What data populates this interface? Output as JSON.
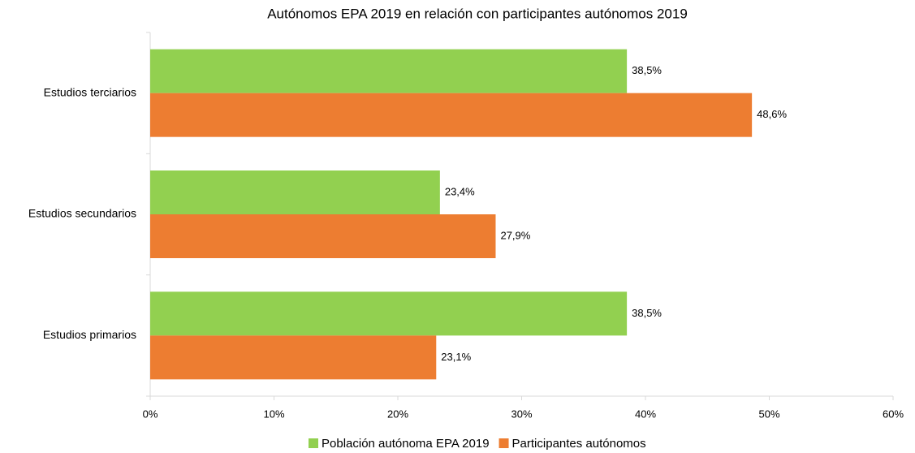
{
  "chart_data": {
    "type": "hbar",
    "title": "Autónomos EPA 2019 en relación con participantes autónomos 2019",
    "categories": [
      "Estudios terciarios",
      "Estudios secundarios",
      "Estudios primarios"
    ],
    "series": [
      {
        "name": "Población autónoma EPA 2019",
        "color": "#92d050",
        "values": [
          38.5,
          23.4,
          38.5
        ],
        "value_labels": [
          "38,5%",
          "23,4%",
          "38,5%"
        ]
      },
      {
        "name": "Participantes autónomos",
        "color": "#ed7d31",
        "values": [
          48.6,
          27.9,
          23.1
        ],
        "value_labels": [
          "48,6%",
          "27,9%",
          "23,1%"
        ]
      }
    ],
    "xlim": [
      0,
      60
    ],
    "xticks": [
      {
        "value": 0,
        "label": "0%"
      },
      {
        "value": 10,
        "label": "10%"
      },
      {
        "value": 20,
        "label": "20%"
      },
      {
        "value": 30,
        "label": "30%"
      },
      {
        "value": 40,
        "label": "40%"
      },
      {
        "value": 50,
        "label": "50%"
      },
      {
        "value": 60,
        "label": "60%"
      }
    ],
    "legend": "bottom"
  }
}
